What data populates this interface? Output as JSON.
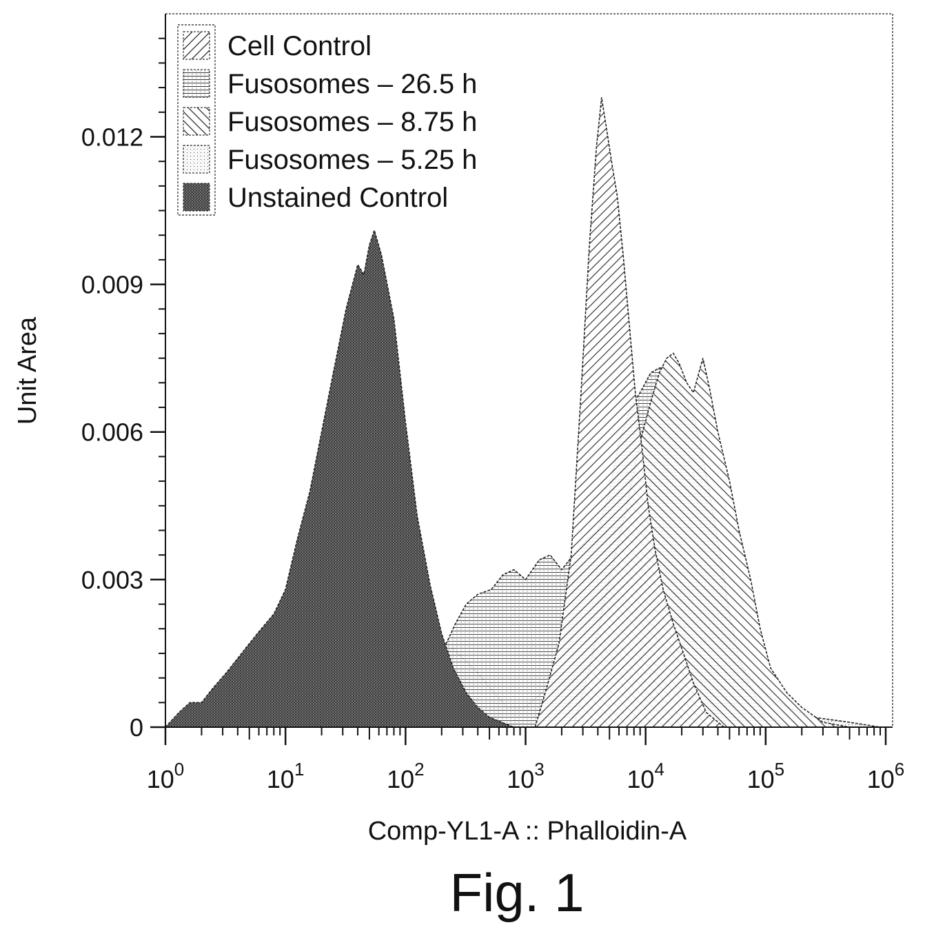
{
  "figure_caption": "Fig. 1",
  "chart_data": {
    "type": "area",
    "title": "",
    "xlabel": "Comp-YL1-A :: Phalloidin-A",
    "ylabel": "Unit Area",
    "x_scale": "log10",
    "xlim": [
      1,
      1000000
    ],
    "ylim": [
      0,
      0.0145
    ],
    "x_ticks": [
      {
        "value": 1,
        "base": "10",
        "exp": "0"
      },
      {
        "value": 10,
        "base": "10",
        "exp": "1"
      },
      {
        "value": 100,
        "base": "10",
        "exp": "2"
      },
      {
        "value": 1000,
        "base": "10",
        "exp": "3"
      },
      {
        "value": 10000,
        "base": "10",
        "exp": "4"
      },
      {
        "value": 100000,
        "base": "10",
        "exp": "5"
      },
      {
        "value": 1000000,
        "base": "10",
        "exp": "6"
      }
    ],
    "y_ticks": [
      {
        "value": 0,
        "label": "0"
      },
      {
        "value": 0.003,
        "label": "0.003"
      },
      {
        "value": 0.006,
        "label": "0.006"
      },
      {
        "value": 0.009,
        "label": "0.009"
      },
      {
        "value": 0.012,
        "label": "0.012"
      }
    ],
    "grid": false,
    "legend_position": "top-left",
    "series": [
      {
        "name": "Cell Control",
        "pattern": "diag-right",
        "x": [
          1200,
          1500,
          1900,
          2400,
          2900,
          3400,
          3900,
          4300,
          4700,
          5200,
          5800,
          6500,
          7300,
          8200,
          9300,
          10500,
          12000,
          14000,
          17000,
          20000,
          25000,
          32000,
          45000
        ],
        "y": [
          0,
          0.0008,
          0.0017,
          0.0035,
          0.0068,
          0.0098,
          0.0118,
          0.0128,
          0.0122,
          0.0115,
          0.0108,
          0.0096,
          0.0082,
          0.0068,
          0.0057,
          0.0045,
          0.0036,
          0.0028,
          0.0021,
          0.0016,
          0.0009,
          0.0003,
          0
        ]
      },
      {
        "name": "Fusosomes – 26.5 h",
        "pattern": "grid",
        "x": [
          60,
          120,
          200,
          260,
          320,
          400,
          520,
          650,
          800,
          1000,
          1300,
          1600,
          2000,
          2500,
          3200,
          4000,
          5000,
          6000,
          7500,
          9000,
          11000,
          13000,
          15000,
          18000,
          22000,
          26000,
          30000,
          35000,
          42000,
          50000,
          60000,
          75000,
          100000,
          150000
        ],
        "y": [
          0,
          0.0004,
          0.0015,
          0.0021,
          0.0025,
          0.0027,
          0.0028,
          0.0031,
          0.0032,
          0.003,
          0.0034,
          0.0035,
          0.0032,
          0.0035,
          0.0038,
          0.004,
          0.0048,
          0.0058,
          0.0065,
          0.0068,
          0.0072,
          0.0073,
          0.0073,
          0.007,
          0.0066,
          0.0062,
          0.0055,
          0.0046,
          0.0035,
          0.0023,
          0.0014,
          0.0008,
          0.0003,
          0
        ]
      },
      {
        "name": "Fusosomes – 8.75 h",
        "pattern": "diag-left",
        "x": [
          2500,
          3500,
          5000,
          7000,
          9000,
          11000,
          13000,
          15000,
          17000,
          19000,
          22000,
          25000,
          30000,
          34000,
          40000,
          50000,
          60000,
          75000,
          90000,
          110000,
          150000,
          200000,
          300000,
          500000
        ],
        "y": [
          0,
          0.0013,
          0.003,
          0.0045,
          0.0058,
          0.0066,
          0.0072,
          0.0075,
          0.0076,
          0.0074,
          0.007,
          0.0068,
          0.0075,
          0.0069,
          0.006,
          0.005,
          0.004,
          0.003,
          0.002,
          0.0012,
          0.0007,
          0.0004,
          0.0001,
          0
        ]
      },
      {
        "name": "Fusosomes – 5.25 h",
        "pattern": "dots",
        "x": [
          1.2,
          2,
          4,
          8,
          15,
          30,
          60,
          100,
          150,
          250,
          400,
          700,
          1000,
          1500,
          2200,
          3000,
          4000,
          5500,
          7000,
          9000,
          10500,
          12500,
          15000,
          20000,
          26000,
          35000,
          50000,
          70000,
          100000,
          150000,
          250000,
          500000,
          900000
        ],
        "y": [
          0,
          0.0001,
          0.0002,
          0.0003,
          0.0004,
          0.0005,
          0.0007,
          0.001,
          0.0013,
          0.0016,
          0.0011,
          0.0004,
          0.0004,
          0.0008,
          0.0013,
          0.002,
          0.003,
          0.0039,
          0.0046,
          0.0052,
          0.0053,
          0.005,
          0.0045,
          0.0038,
          0.003,
          0.0023,
          0.0016,
          0.0011,
          0.0007,
          0.0004,
          0.0002,
          0.0001,
          0
        ]
      },
      {
        "name": "Unstained Control",
        "pattern": "dense",
        "x": [
          1,
          1.3,
          1.6,
          2,
          2.5,
          3.2,
          4,
          5,
          6.3,
          8,
          10,
          12.5,
          16,
          20,
          25,
          32,
          40,
          45,
          50,
          55,
          63,
          80,
          100,
          125,
          160,
          200,
          250,
          320,
          400,
          500,
          630,
          800
        ],
        "y": [
          0,
          0.0003,
          0.0005,
          0.0005,
          0.0008,
          0.0011,
          0.0014,
          0.0017,
          0.002,
          0.0023,
          0.0028,
          0.0038,
          0.0048,
          0.006,
          0.0072,
          0.0085,
          0.0094,
          0.0092,
          0.0098,
          0.0101,
          0.0096,
          0.0083,
          0.0062,
          0.0043,
          0.0029,
          0.0019,
          0.0012,
          0.0007,
          0.0004,
          0.0002,
          0.0001,
          0
        ]
      }
    ]
  }
}
